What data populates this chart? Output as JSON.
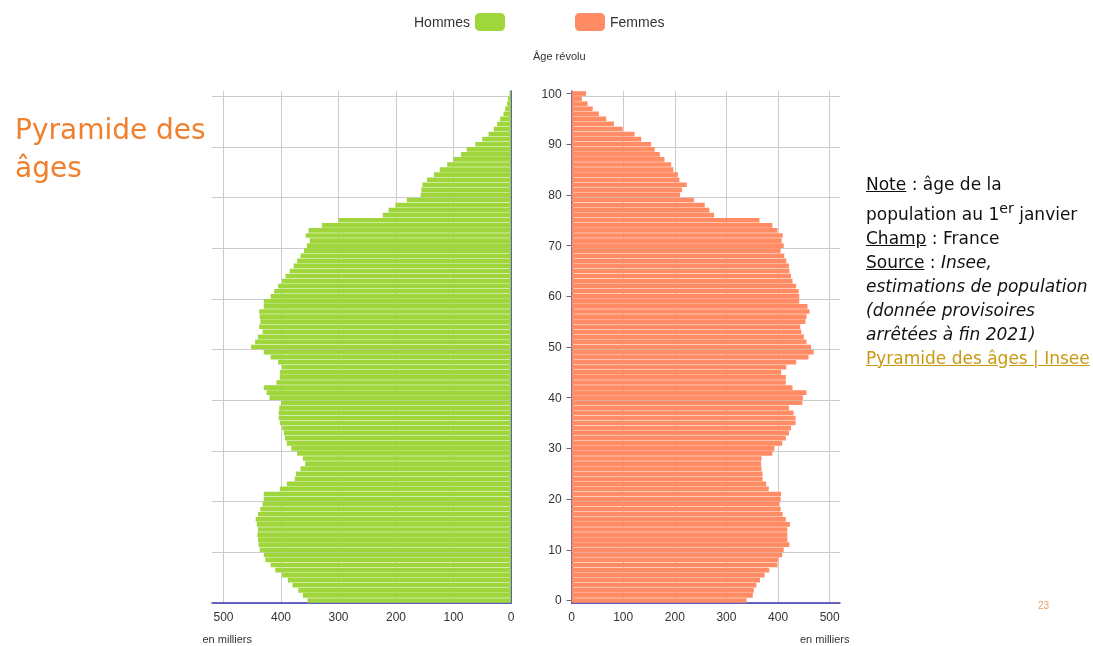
{
  "chart_data": [
    {
      "type": "bar",
      "orientation": "horizontal",
      "title": "Pyramide des âges",
      "xlabel": "en milliers",
      "categories": [
        "100",
        null,
        null,
        null,
        null,
        null,
        null,
        null,
        null,
        null,
        "90",
        null,
        null,
        null,
        null,
        null,
        null,
        null,
        null,
        null,
        "80",
        null,
        null,
        null,
        null,
        null,
        null,
        null,
        null,
        null,
        "70",
        null,
        null,
        null,
        null,
        null,
        null,
        null,
        null,
        null,
        "60",
        null,
        null,
        null,
        null,
        null,
        null,
        null,
        null,
        null,
        "50",
        null,
        null,
        null,
        null,
        null,
        null,
        null,
        null,
        null,
        "40",
        null,
        null,
        null,
        null,
        null,
        null,
        null,
        null,
        null,
        "30",
        null,
        null,
        null,
        null,
        null,
        null,
        null,
        null,
        null,
        "20",
        null,
        null,
        null,
        null,
        null,
        null,
        null,
        null,
        null,
        "10",
        null,
        null,
        null,
        null,
        null,
        null,
        null,
        null,
        null,
        "0"
      ],
      "series": [
        {
          "name": "Hommes",
          "color": "#9fd63c",
          "values": [
            3,
            5,
            7,
            10,
            13,
            19,
            24,
            30,
            39,
            50,
            62,
            77,
            87,
            100,
            111,
            124,
            134,
            146,
            154,
            156,
            157,
            181,
            201,
            213,
            223,
            300,
            329,
            352,
            357,
            350,
            355,
            360,
            366,
            372,
            378,
            385,
            392,
            398,
            405,
            412,
            418,
            430,
            430,
            438,
            437,
            436,
            438,
            432,
            440,
            445,
            452,
            430,
            418,
            405,
            398,
            402,
            402,
            408,
            430,
            425,
            420,
            400,
            403,
            404,
            404,
            402,
            398,
            395,
            393,
            390,
            382,
            372,
            362,
            358,
            366,
            374,
            376,
            390,
            402,
            430,
            430,
            432,
            436,
            440,
            444,
            442,
            440,
            441,
            440,
            439,
            437,
            430,
            427,
            418,
            410,
            398,
            388,
            380,
            370,
            362,
            354
          ]
        }
      ],
      "xlim": [
        520,
        0
      ],
      "xticks": [
        500,
        400,
        300,
        200,
        100,
        0
      ],
      "grid": true,
      "legend": "top right",
      "tick_labels": "x"
    },
    {
      "type": "bar",
      "orientation": "horizontal",
      "xlabel": "en milliers",
      "ylabel": "Âge révolu",
      "categories": [
        "100",
        null,
        null,
        null,
        null,
        null,
        null,
        null,
        null,
        null,
        "90",
        null,
        null,
        null,
        null,
        null,
        null,
        null,
        null,
        null,
        "80",
        null,
        null,
        null,
        null,
        null,
        null,
        null,
        null,
        null,
        "70",
        null,
        null,
        null,
        null,
        null,
        null,
        null,
        null,
        null,
        "60",
        null,
        null,
        null,
        null,
        null,
        null,
        null,
        null,
        null,
        "50",
        null,
        null,
        null,
        null,
        null,
        null,
        null,
        null,
        null,
        "40",
        null,
        null,
        null,
        null,
        null,
        null,
        null,
        null,
        null,
        "30",
        null,
        null,
        null,
        null,
        null,
        null,
        null,
        null,
        null,
        "20",
        null,
        null,
        null,
        null,
        null,
        null,
        null,
        null,
        null,
        "10",
        null,
        null,
        null,
        null,
        null,
        null,
        null,
        null,
        null,
        "0"
      ],
      "series": [
        {
          "name": "Femmes",
          "color": "#ff8c64",
          "values": [
            28,
            20,
            31,
            41,
            53,
            67,
            82,
            99,
            122,
            135,
            154,
            161,
            171,
            180,
            193,
            197,
            206,
            209,
            223,
            214,
            210,
            237,
            258,
            267,
            276,
            364,
            389,
            399,
            409,
            407,
            411,
            405,
            412,
            416,
            421,
            422,
            425,
            428,
            435,
            440,
            441,
            441,
            457,
            461,
            455,
            453,
            443,
            445,
            450,
            455,
            464,
            469,
            459,
            435,
            416,
            406,
            415,
            415,
            428,
            455,
            448,
            447,
            421,
            430,
            434,
            434,
            425,
            421,
            415,
            408,
            393,
            389,
            368,
            367,
            368,
            370,
            370,
            377,
            382,
            406,
            405,
            403,
            405,
            409,
            415,
            423,
            418,
            418,
            418,
            422,
            411,
            408,
            400,
            399,
            383,
            374,
            365,
            358,
            353,
            351,
            339
          ]
        }
      ],
      "xlim": [
        0,
        520
      ],
      "xticks": [
        0,
        100,
        200,
        300,
        400,
        500
      ],
      "grid": true,
      "legend": "top left",
      "annotations": [
        "Note : âge de la population au 1$^{er}$ janvier",
        "Champ : France",
        "Source : Insee, estimations de population (donnée provisoires arrêtées à fin 2021)",
        "Pyramide des âges | Insee",
        "23"
      ]
    }
  ]
}
